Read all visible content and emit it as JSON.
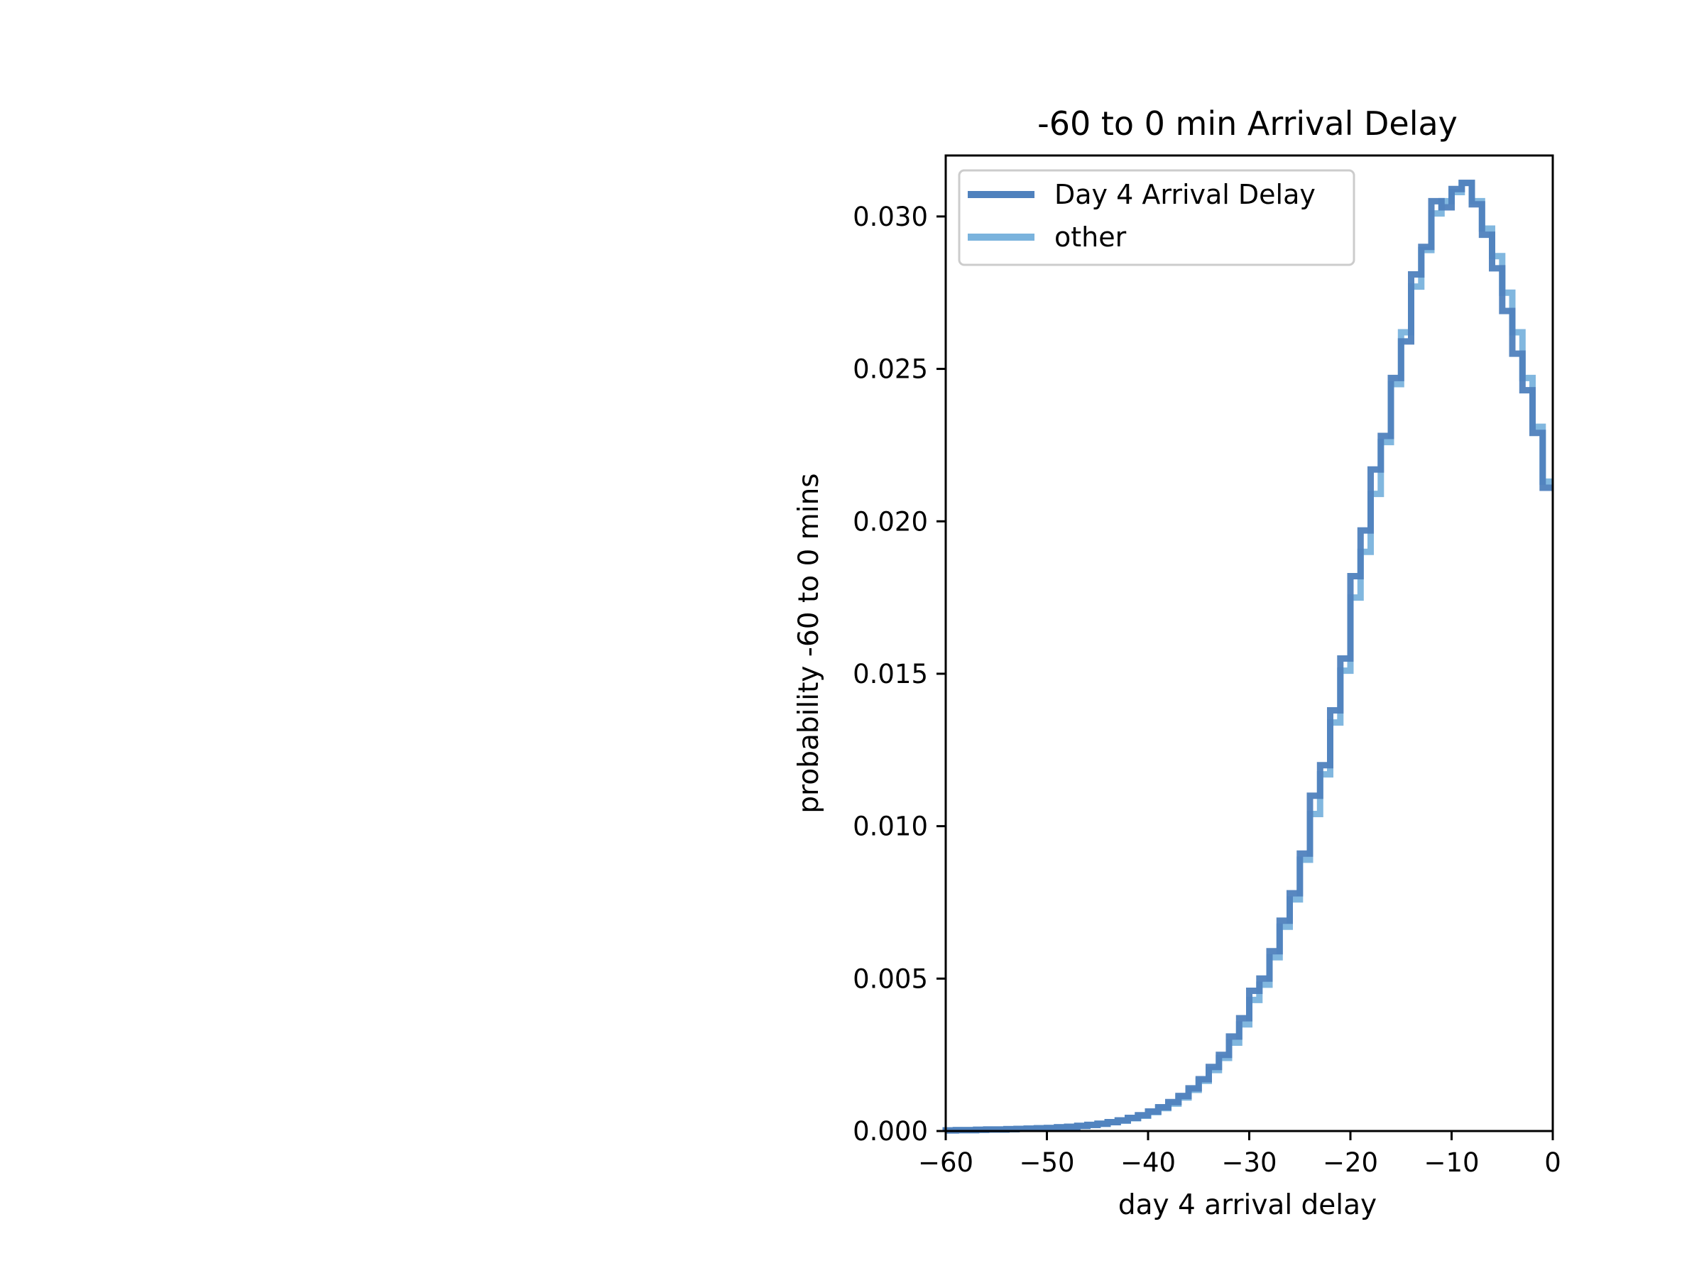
{
  "chart_data": {
    "type": "line",
    "style": "step histogram",
    "title": "-60 to 0 min Arrival Delay",
    "xlabel": "day 4 arrival delay",
    "ylabel": "probability -60 to 0 mins",
    "xlim": [
      -60,
      0
    ],
    "ylim": [
      0,
      0.032
    ],
    "xticks": [
      -60,
      -50,
      -40,
      -30,
      -20,
      -10,
      0
    ],
    "xtick_labels": [
      "−60",
      "−50",
      "−40",
      "−30",
      "−20",
      "−10",
      "0"
    ],
    "yticks": [
      0,
      0.005,
      0.01,
      0.015,
      0.02,
      0.025,
      0.03
    ],
    "ytick_labels": [
      "0.000",
      "0.005",
      "0.010",
      "0.015",
      "0.020",
      "0.025",
      "0.030"
    ],
    "grid": false,
    "legend": "top-left",
    "bin_edges": [
      -60,
      -59,
      -58,
      -57,
      -56,
      -55,
      -54,
      -53,
      -52,
      -51,
      -50,
      -49,
      -48,
      -47,
      -46,
      -45,
      -44,
      -43,
      -42,
      -41,
      -40,
      -39,
      -38,
      -37,
      -36,
      -35,
      -34,
      -33,
      -32,
      -31,
      -30,
      -29,
      -28,
      -27,
      -26,
      -25,
      -24,
      -23,
      -22,
      -21,
      -20,
      -19,
      -18,
      -17,
      -16,
      -15,
      -14,
      -13,
      -12,
      -11,
      -10,
      -9,
      -8,
      -7,
      -6,
      -5,
      -4,
      -3,
      -2,
      -1,
      0
    ],
    "series": [
      {
        "name": "Day 4 Arrival Delay",
        "color": "#4f81bd",
        "values": [
          2e-05,
          3e-05,
          3e-05,
          4e-05,
          5e-05,
          5e-05,
          6e-05,
          7e-05,
          8e-05,
          9e-05,
          0.0001,
          0.00012,
          0.00014,
          0.00017,
          0.0002,
          0.00024,
          0.00029,
          0.00035,
          0.00043,
          0.00052,
          0.00064,
          0.00078,
          0.00095,
          0.00115,
          0.0014,
          0.0017,
          0.0021,
          0.0025,
          0.0031,
          0.0037,
          0.0046,
          0.005,
          0.0059,
          0.0069,
          0.0078,
          0.0091,
          0.011,
          0.012,
          0.0138,
          0.0155,
          0.0182,
          0.0197,
          0.0217,
          0.0228,
          0.0247,
          0.0259,
          0.0281,
          0.029,
          0.0305,
          0.0303,
          0.0309,
          0.0311,
          0.0304,
          0.0294,
          0.0283,
          0.0269,
          0.0255,
          0.0243,
          0.0229,
          0.0211
        ]
      },
      {
        "name": "other",
        "color": "#7ab3dd",
        "values": [
          2e-05,
          3e-05,
          3e-05,
          4e-05,
          5e-05,
          5e-05,
          6e-05,
          7e-05,
          8e-05,
          9e-05,
          0.0001,
          0.00012,
          0.00014,
          0.00017,
          0.0002,
          0.00024,
          0.00029,
          0.00034,
          0.00042,
          0.0005,
          0.00062,
          0.00075,
          0.0009,
          0.0011,
          0.00135,
          0.00165,
          0.002,
          0.0024,
          0.0029,
          0.0035,
          0.0043,
          0.0048,
          0.0057,
          0.0067,
          0.0076,
          0.0089,
          0.0104,
          0.0117,
          0.0134,
          0.0151,
          0.0175,
          0.019,
          0.0209,
          0.0226,
          0.0245,
          0.0262,
          0.0277,
          0.0289,
          0.0301,
          0.0305,
          0.0308,
          0.0311,
          0.0305,
          0.0296,
          0.0287,
          0.0275,
          0.0262,
          0.0247,
          0.0231,
          0.0213
        ]
      }
    ]
  }
}
